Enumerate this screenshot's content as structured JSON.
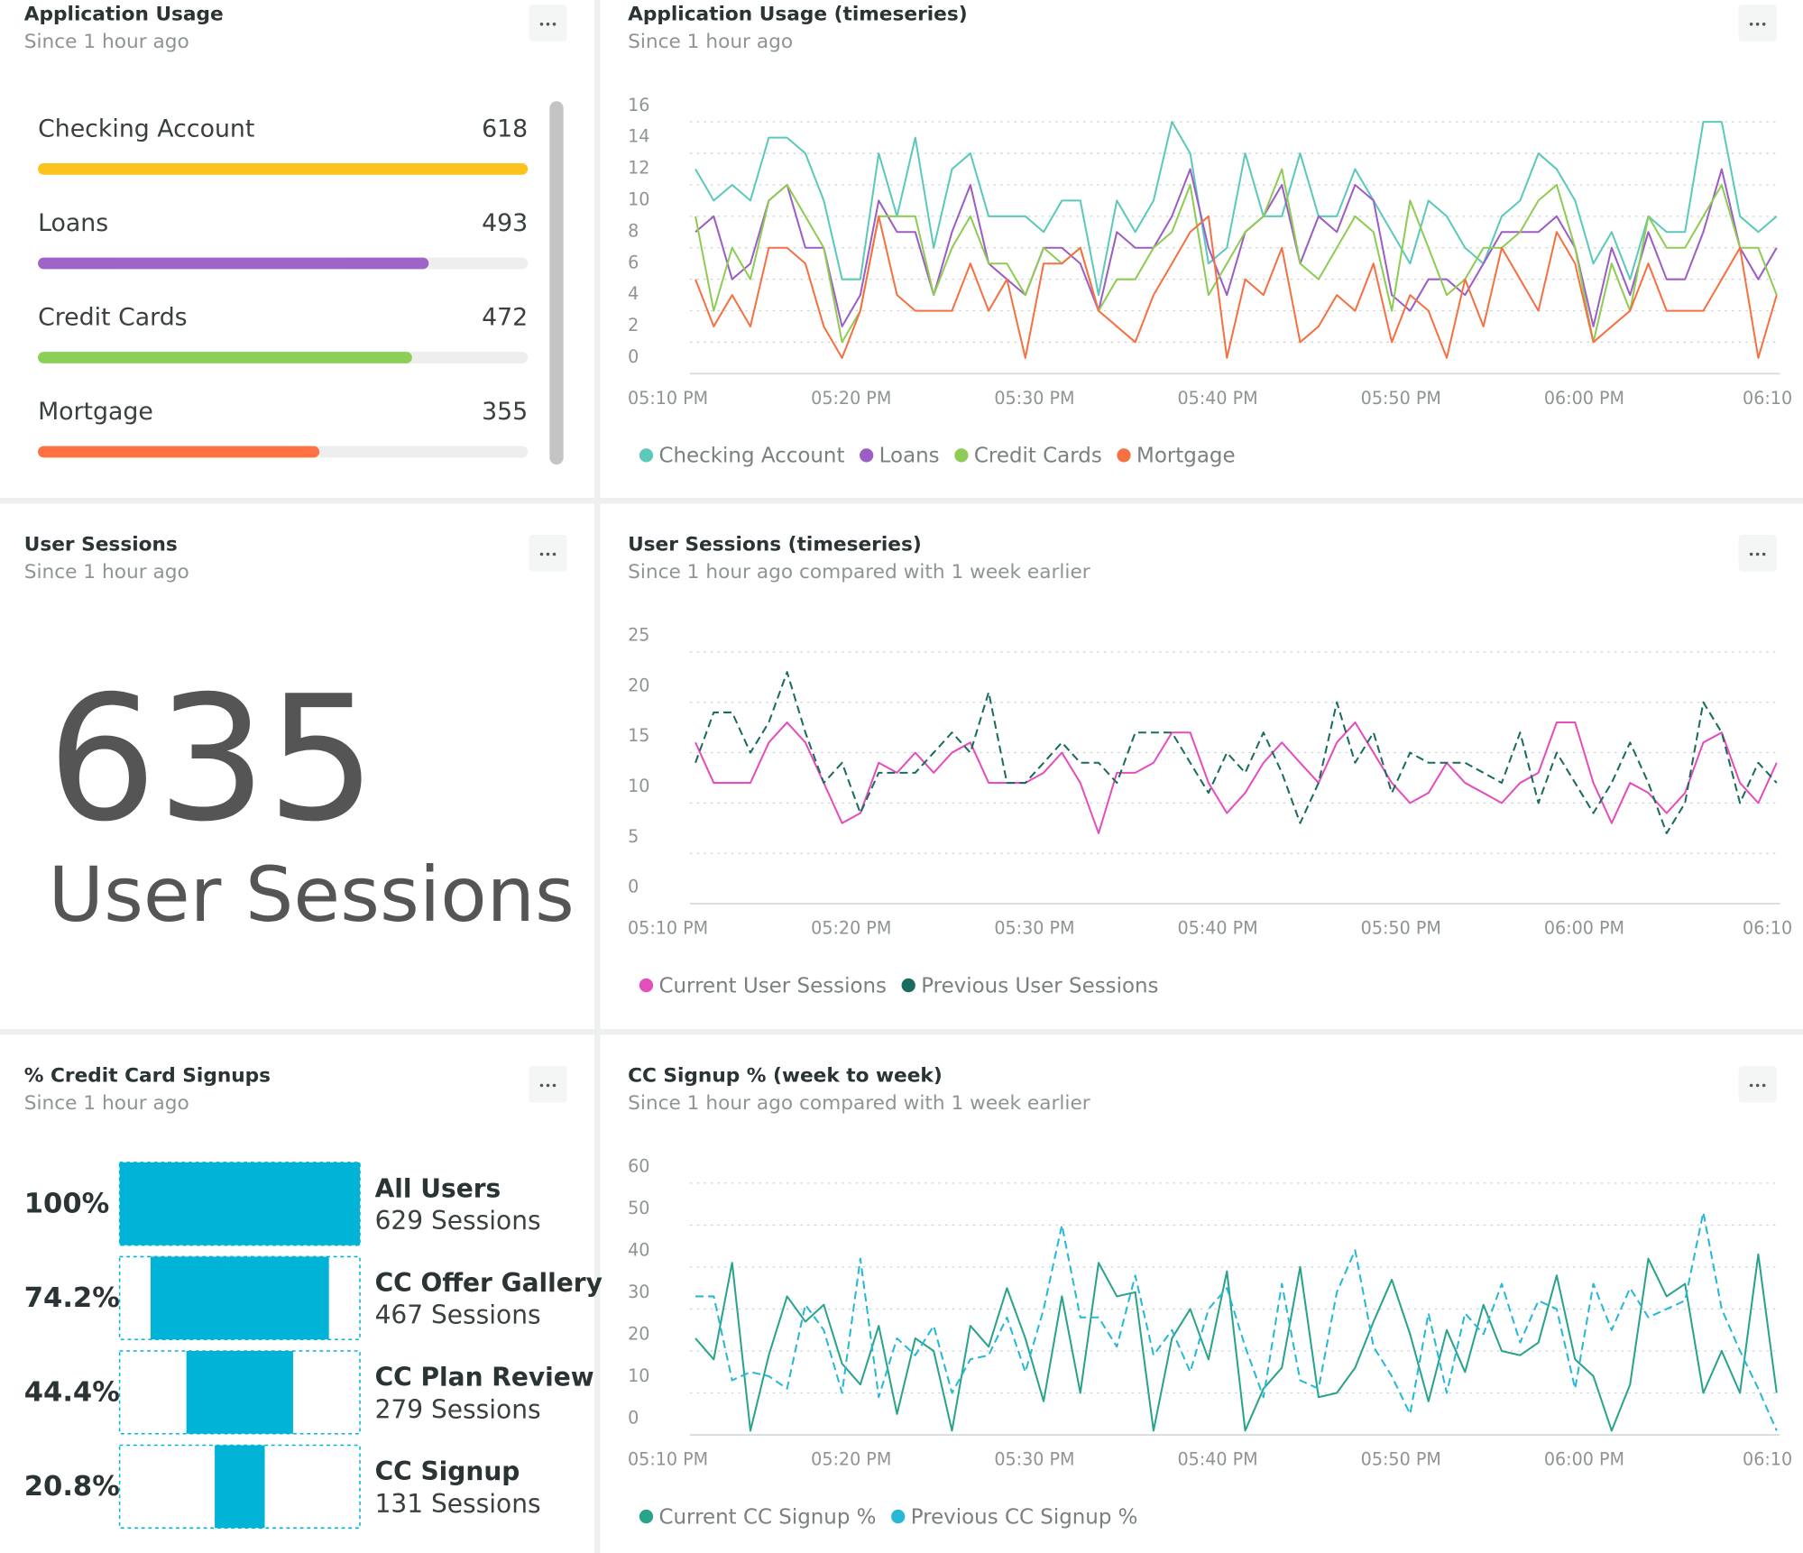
{
  "chart_data": [
    {
      "type": "bar",
      "title": "Application Usage",
      "subtitle": "Since 1 hour ago",
      "categories": [
        "Checking Account",
        "Loans",
        "Credit Cards",
        "Mortgage"
      ],
      "values": [
        618,
        493,
        472,
        355
      ],
      "colors": [
        "#fcc21e",
        "#a064c8",
        "#8ccf57",
        "#ff7043"
      ]
    },
    {
      "type": "line",
      "title": "Application Usage (timeseries)",
      "subtitle": "Since 1 hour ago",
      "x": [
        11.5,
        12.5,
        13.5,
        14.5,
        15.5,
        16.5,
        17.5,
        18.5,
        19.5,
        20.5,
        21.5,
        22.5,
        23.5,
        24.5,
        25.5,
        26.5,
        27.5,
        28.5,
        29.5,
        30.5,
        31.5,
        32.5,
        33.5,
        34.5,
        35.5,
        36.5,
        37.5,
        38.5,
        39.5,
        40.5,
        41.5,
        42.5,
        43.5,
        44.5,
        45.5,
        46.5,
        47.5,
        48.5,
        49.5,
        50.5,
        51.5,
        52.5,
        53.5,
        54.5,
        55.5,
        56.5,
        57.5,
        58.5,
        59.5,
        60.5,
        61.5,
        62.5,
        63.5,
        64.5,
        65.5,
        66.5,
        67.5,
        68.5,
        69.5,
        70.5
      ],
      "xlim": [
        8.5,
        71.5
      ],
      "xticks": [
        {
          "value": 10,
          "label": "05:10 PM"
        },
        {
          "value": 20,
          "label": "05:20 PM"
        },
        {
          "value": 30,
          "label": "05:30 PM"
        },
        {
          "value": 40,
          "label": "05:40 PM"
        },
        {
          "value": 50,
          "label": "05:50 PM"
        },
        {
          "value": 60,
          "label": "06:00 PM"
        },
        {
          "value": 70,
          "label": "06:10"
        }
      ],
      "ylim": [
        0,
        16
      ],
      "yticks": [
        0,
        2,
        4,
        6,
        8,
        10,
        12,
        14,
        16
      ],
      "grid": true,
      "series": [
        {
          "name": "Checking Account",
          "color": "#5cc9bb",
          "values": [
            13,
            11,
            12,
            11,
            15,
            15,
            14,
            11,
            6,
            6,
            14,
            10,
            15,
            8,
            13,
            14,
            10,
            10,
            10,
            9,
            11,
            11,
            5,
            11,
            9,
            11,
            16,
            14,
            7,
            8,
            14,
            10,
            10,
            14,
            10,
            10,
            13,
            11,
            9,
            7,
            11,
            10,
            8,
            7,
            10,
            11,
            14,
            13,
            11,
            7,
            9,
            6,
            10,
            9,
            9,
            16,
            16,
            10,
            9,
            10
          ]
        },
        {
          "name": "Loans",
          "color": "#9c5ec5",
          "values": [
            9,
            10,
            6,
            7,
            11,
            12,
            8,
            8,
            3,
            5,
            11,
            9,
            9,
            5,
            9,
            12,
            7,
            6,
            5,
            8,
            8,
            7,
            4,
            9,
            8,
            8,
            10,
            13,
            8,
            5,
            9,
            10,
            12,
            7,
            10,
            9,
            12,
            11,
            5,
            4,
            6,
            6,
            5,
            7,
            9,
            9,
            9,
            10,
            8,
            3,
            8,
            5,
            9,
            6,
            6,
            9,
            13,
            8,
            6,
            8
          ]
        },
        {
          "name": "Credit Cards",
          "color": "#8fcc55",
          "values": [
            10,
            4,
            8,
            6,
            11,
            12,
            10,
            8,
            2,
            4,
            10,
            10,
            10,
            5,
            8,
            10,
            7,
            7,
            5,
            8,
            7,
            8,
            4,
            6,
            6,
            8,
            9,
            12,
            5,
            7,
            9,
            10,
            13,
            7,
            6,
            8,
            10,
            9,
            4,
            11,
            8,
            5,
            6,
            8,
            8,
            9,
            11,
            12,
            8,
            2,
            7,
            4,
            10,
            8,
            8,
            10,
            12,
            8,
            8,
            5
          ]
        },
        {
          "name": "Mortgage",
          "color": "#f57144",
          "values": [
            6,
            3,
            5,
            3,
            8,
            8,
            7,
            3,
            1,
            4,
            10,
            5,
            4,
            4,
            4,
            7,
            4,
            6,
            1,
            7,
            7,
            8,
            4,
            3,
            2,
            5,
            7,
            9,
            10,
            1,
            6,
            5,
            8,
            2,
            3,
            5,
            4,
            7,
            2,
            5,
            4,
            1,
            6,
            3,
            8,
            6,
            4,
            9,
            7,
            2,
            3,
            4,
            7,
            4,
            4,
            4,
            6,
            8,
            1,
            5
          ]
        }
      ]
    },
    {
      "type": "line",
      "title": "User Sessions (timeseries)",
      "subtitle": "Since 1 hour ago compared with 1 week earlier",
      "x": [
        11.5,
        12.5,
        13.5,
        14.5,
        15.5,
        16.5,
        17.5,
        18.5,
        19.5,
        20.5,
        21.5,
        22.5,
        23.5,
        24.5,
        25.5,
        26.5,
        27.5,
        28.5,
        29.5,
        30.5,
        31.5,
        32.5,
        33.5,
        34.5,
        35.5,
        36.5,
        37.5,
        38.5,
        39.5,
        40.5,
        41.5,
        42.5,
        43.5,
        44.5,
        45.5,
        46.5,
        47.5,
        48.5,
        49.5,
        50.5,
        51.5,
        52.5,
        53.5,
        54.5,
        55.5,
        56.5,
        57.5,
        58.5,
        59.5,
        60.5,
        61.5,
        62.5,
        63.5,
        64.5,
        65.5,
        66.5,
        67.5,
        68.5,
        69.5,
        70.5
      ],
      "xlim": [
        8.5,
        71.5
      ],
      "xticks": [
        {
          "value": 10,
          "label": "05:10 PM"
        },
        {
          "value": 20,
          "label": "05:20 PM"
        },
        {
          "value": 30,
          "label": "05:30 PM"
        },
        {
          "value": 40,
          "label": "05:40 PM"
        },
        {
          "value": 50,
          "label": "05:50 PM"
        },
        {
          "value": 60,
          "label": "06:00 PM"
        },
        {
          "value": 70,
          "label": "06:10"
        }
      ],
      "ylim": [
        0,
        25
      ],
      "yticks": [
        0,
        5,
        10,
        15,
        20,
        25
      ],
      "grid": true,
      "series": [
        {
          "name": "Current User Sessions",
          "color": "#e34fbd",
          "dashed": false,
          "values": [
            16,
            12,
            12,
            12,
            16,
            18,
            16,
            12,
            8,
            9,
            14,
            13,
            15,
            13,
            15,
            16,
            12,
            12,
            12,
            13,
            15,
            12,
            7,
            13,
            13,
            14,
            17,
            17,
            12,
            9,
            11,
            14,
            16,
            14,
            12,
            16,
            18,
            15,
            12,
            10,
            11,
            14,
            12,
            11,
            10,
            12,
            13,
            18,
            18,
            12,
            8,
            12,
            11,
            9,
            11,
            16,
            17,
            12,
            10,
            14
          ]
        },
        {
          "name": "Previous User Sessions",
          "color": "#1b6b5e",
          "dashed": true,
          "values": [
            14,
            19,
            19,
            15,
            18,
            23,
            17,
            12,
            14,
            9,
            13,
            13,
            13,
            15,
            17,
            15,
            21,
            12,
            12,
            14,
            16,
            14,
            14,
            12,
            17,
            17,
            17,
            14,
            11,
            15,
            13,
            17,
            13,
            8,
            12,
            20,
            14,
            17,
            11,
            15,
            14,
            14,
            14,
            13,
            12,
            17,
            10,
            15,
            12,
            9,
            12,
            16,
            12,
            7,
            10,
            20,
            17,
            10,
            14,
            12
          ]
        }
      ]
    },
    {
      "type": "funnel",
      "title": "% Credit Card Signups",
      "subtitle": "Since 1 hour ago",
      "color": "#02b3d8",
      "steps": [
        {
          "name": "All Users",
          "value": 629,
          "value_label": "629 Sessions",
          "percent": 100,
          "percent_label": "100%"
        },
        {
          "name": "CC Offer Gallery",
          "value": 467,
          "value_label": "467 Sessions",
          "percent": 74.2,
          "percent_label": "74.2%"
        },
        {
          "name": "CC Plan Review",
          "value": 279,
          "value_label": "279 Sessions",
          "percent": 44.4,
          "percent_label": "44.4%"
        },
        {
          "name": "CC Signup",
          "value": 131,
          "value_label": "131 Sessions",
          "percent": 20.8,
          "percent_label": "20.8%"
        }
      ]
    },
    {
      "type": "line",
      "title": "CC Signup % (week to week)",
      "subtitle": "Since 1 hour ago compared with 1 week earlier",
      "x": [
        11.5,
        12.5,
        13.5,
        14.5,
        15.5,
        16.5,
        17.5,
        18.5,
        19.5,
        20.5,
        21.5,
        22.5,
        23.5,
        24.5,
        25.5,
        26.5,
        27.5,
        28.5,
        29.5,
        30.5,
        31.5,
        32.5,
        33.5,
        34.5,
        35.5,
        36.5,
        37.5,
        38.5,
        39.5,
        40.5,
        41.5,
        42.5,
        43.5,
        44.5,
        45.5,
        46.5,
        47.5,
        48.5,
        49.5,
        50.5,
        51.5,
        52.5,
        53.5,
        54.5,
        55.5,
        56.5,
        57.5,
        58.5,
        59.5,
        60.5,
        61.5,
        62.5,
        63.5,
        64.5,
        65.5,
        66.5,
        67.5,
        68.5,
        69.5,
        70.5
      ],
      "xlim": [
        8.5,
        71.5
      ],
      "xticks": [
        {
          "value": 10,
          "label": "05:10 PM"
        },
        {
          "value": 20,
          "label": "05:20 PM"
        },
        {
          "value": 30,
          "label": "05:30 PM"
        },
        {
          "value": 40,
          "label": "05:40 PM"
        },
        {
          "value": 50,
          "label": "05:50 PM"
        },
        {
          "value": 60,
          "label": "06:00 PM"
        },
        {
          "value": 70,
          "label": "06:10"
        }
      ],
      "ylim": [
        0,
        60
      ],
      "yticks": [
        0,
        10,
        20,
        30,
        40,
        50,
        60
      ],
      "grid": true,
      "series": [
        {
          "name": "Current CC Signup %",
          "color": "#2aa38b",
          "dashed": false,
          "values": [
            23,
            18,
            41,
            1,
            19,
            33,
            27,
            31,
            17,
            12,
            26,
            5,
            23,
            20,
            1,
            26,
            21,
            35,
            23,
            8,
            33,
            10,
            41,
            33,
            34,
            1,
            23,
            30,
            18,
            39,
            1,
            11,
            16,
            40,
            9,
            10,
            16,
            27,
            37,
            24,
            8,
            25,
            15,
            31,
            20,
            19,
            22,
            38,
            18,
            14,
            1,
            12,
            42,
            33,
            36,
            10,
            20,
            10,
            43,
            10
          ]
        },
        {
          "name": "Previous CC Signup %",
          "color": "#27b8d8",
          "dashed": true,
          "values": [
            33,
            33,
            13,
            15,
            14,
            11,
            31,
            25,
            10,
            42,
            9,
            23,
            19,
            26,
            10,
            18,
            19,
            28,
            15,
            30,
            50,
            28,
            28,
            21,
            38,
            19,
            25,
            15,
            30,
            35,
            21,
            9,
            36,
            13,
            11,
            34,
            44,
            21,
            14,
            5,
            29,
            10,
            29,
            24,
            36,
            22,
            32,
            30,
            11,
            36,
            25,
            35,
            28,
            30,
            32,
            53,
            30,
            20,
            11,
            1
          ]
        }
      ]
    }
  ],
  "billboard": {
    "title": "User Sessions",
    "subtitle": "Since 1 hour ago",
    "value": 635,
    "label": "User Sessions"
  }
}
